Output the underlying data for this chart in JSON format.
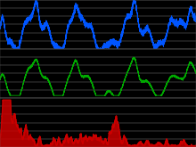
{
  "bg_color": "#000000",
  "panel_bg": "#000000",
  "grid_color": "#aaaaaa",
  "blue_color": "#0055ff",
  "green_color": "#00aa00",
  "red_color": "#cc0000",
  "x_min": 0,
  "x_max": 400000,
  "temp_ylim": [
    -9,
    4
  ],
  "co2_ylim": [
    175,
    310
  ],
  "dust_ylim": [
    0,
    2.5
  ],
  "n_gridlines": 7
}
